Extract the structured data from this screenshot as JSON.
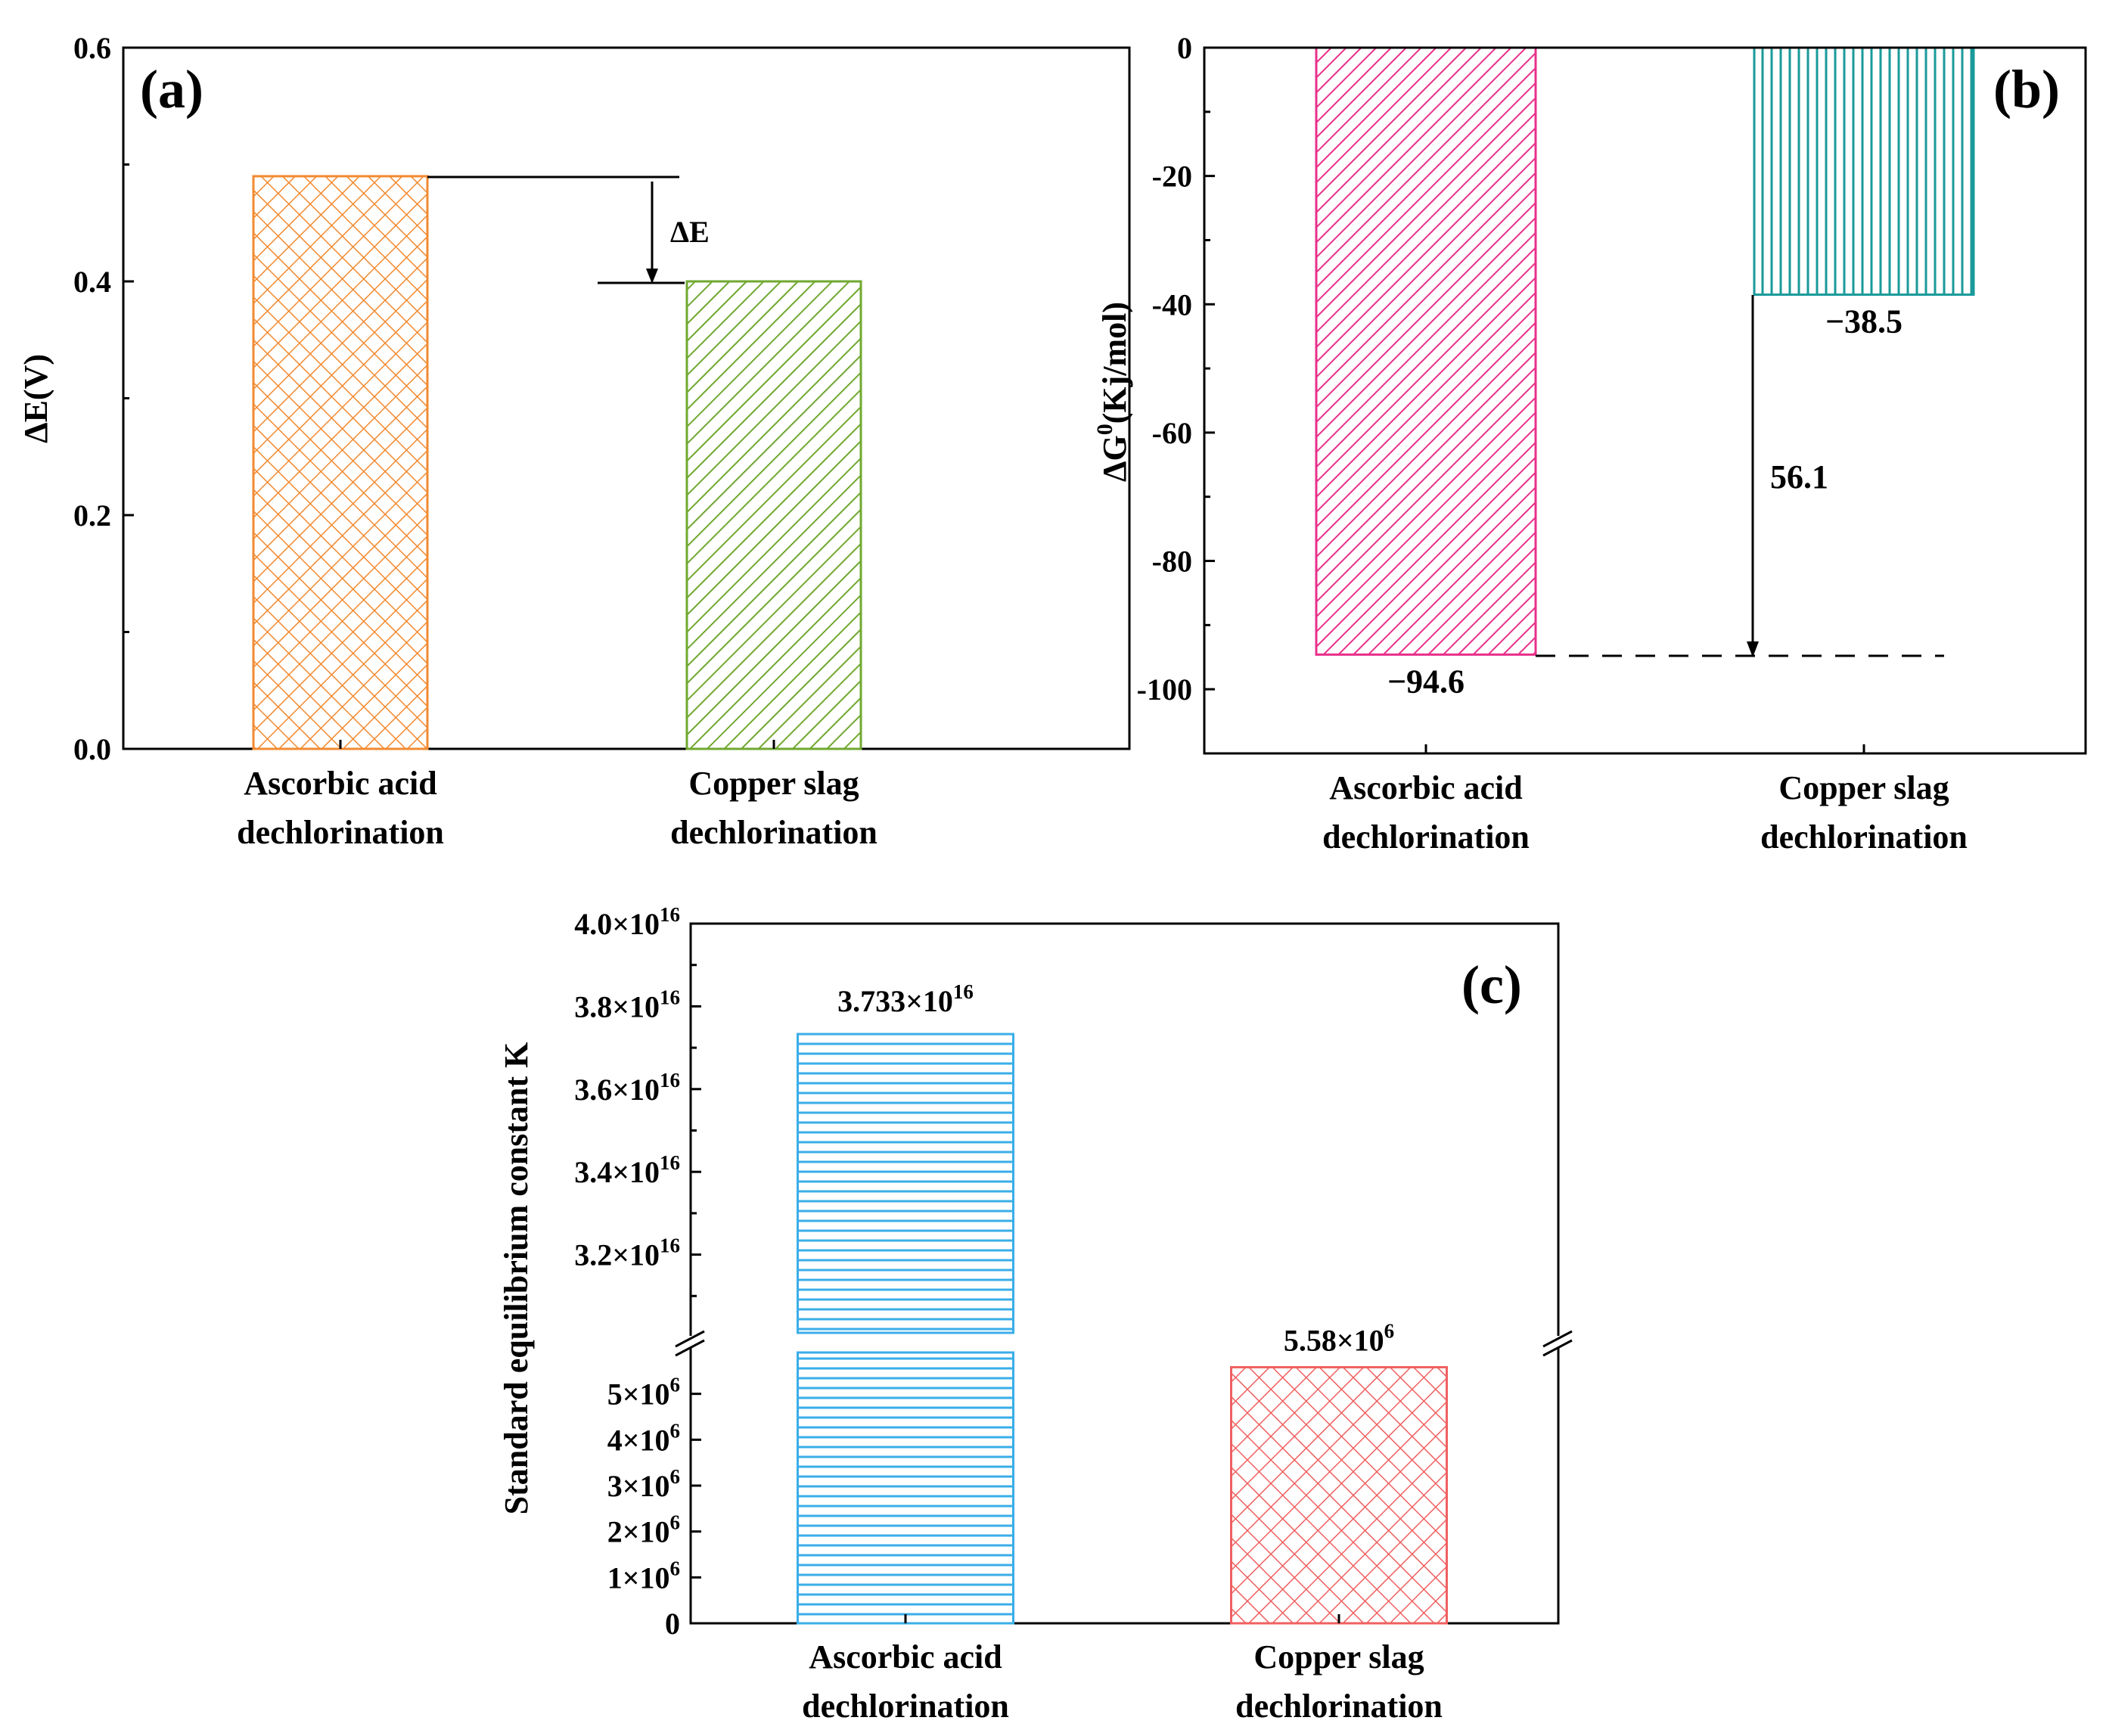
{
  "chart_data": [
    {
      "id": "a",
      "type": "bar",
      "panel_label": "(a)",
      "categories": [
        {
          "line1": "Ascorbic acid",
          "line2": "dechlorination"
        },
        {
          "line1": "Copper slag",
          "line2": "dechlorination"
        }
      ],
      "values": [
        0.49,
        0.4
      ],
      "ylabel": "ΔE(V)",
      "ylim": [
        0,
        0.6
      ],
      "yticks": [
        "0.0",
        "0.2",
        "0.4",
        "0.6"
      ],
      "ytick_values": [
        0,
        0.2,
        0.4,
        0.6
      ],
      "annotation": "ΔE",
      "colors": [
        "#F28A30",
        "#70A830"
      ],
      "patterns": [
        "crosshatch",
        "diagonal"
      ]
    },
    {
      "id": "b",
      "type": "bar",
      "panel_label": "(b)",
      "categories": [
        {
          "line1": "Ascorbic acid",
          "line2": "dechlorination"
        },
        {
          "line1": "Copper slag",
          "line2": "dechlorination"
        }
      ],
      "values": [
        -94.6,
        -38.5
      ],
      "data_labels": [
        "−94.6",
        "−38.5"
      ],
      "ylabel_main": "ΔG",
      "ylabel_sup": "0",
      "ylabel_rest": "(Kj/mol)",
      "ylim": [
        -110,
        0
      ],
      "yticks": [
        "0",
        "-20",
        "-40",
        "-60",
        "-80",
        "-100"
      ],
      "ytick_values": [
        0,
        -20,
        -40,
        -60,
        -80,
        -100
      ],
      "annotation": "56.1",
      "colors": [
        "#E8308A",
        "#1A9A9A"
      ],
      "patterns": [
        "diagonal",
        "vertical"
      ]
    },
    {
      "id": "c",
      "type": "bar",
      "panel_label": "(c)",
      "categories": [
        {
          "line1": "Ascorbic acid",
          "line2": "dechlorination"
        },
        {
          "line1": "Copper slag",
          "line2": "dechlorination"
        }
      ],
      "values": [
        3.733e+16,
        5580000.0
      ],
      "data_labels": [
        {
          "base": "3.733×10",
          "exp": "16"
        },
        {
          "base": "5.58×10",
          "exp": "6"
        }
      ],
      "ylabel": "Standard equilibrium constant K",
      "upper_range": [
        3e+16,
        4e+16
      ],
      "lower_range": [
        0,
        6000000.0
      ],
      "upper_ticks": [
        {
          "value": 3.2e+16,
          "base": "3.2×10",
          "exp": "16"
        },
        {
          "value": 3.4e+16,
          "base": "3.4×10",
          "exp": "16"
        },
        {
          "value": 3.6e+16,
          "base": "3.6×10",
          "exp": "16"
        },
        {
          "value": 3.8e+16,
          "base": "3.8×10",
          "exp": "16"
        },
        {
          "value": 4e+16,
          "base": "4.0×10",
          "exp": "16"
        }
      ],
      "lower_ticks": [
        {
          "value": 0,
          "base": "0",
          "exp": ""
        },
        {
          "value": 1000000.0,
          "base": "1×10",
          "exp": "6"
        },
        {
          "value": 2000000.0,
          "base": "2×10",
          "exp": "6"
        },
        {
          "value": 3000000.0,
          "base": "3×10",
          "exp": "6"
        },
        {
          "value": 4000000.0,
          "base": "4×10",
          "exp": "6"
        },
        {
          "value": 5000000.0,
          "base": "5×10",
          "exp": "6"
        }
      ],
      "colors": [
        "#3AAEE8",
        "#F06060"
      ],
      "patterns": [
        "horizontal",
        "crosshatch"
      ]
    }
  ]
}
